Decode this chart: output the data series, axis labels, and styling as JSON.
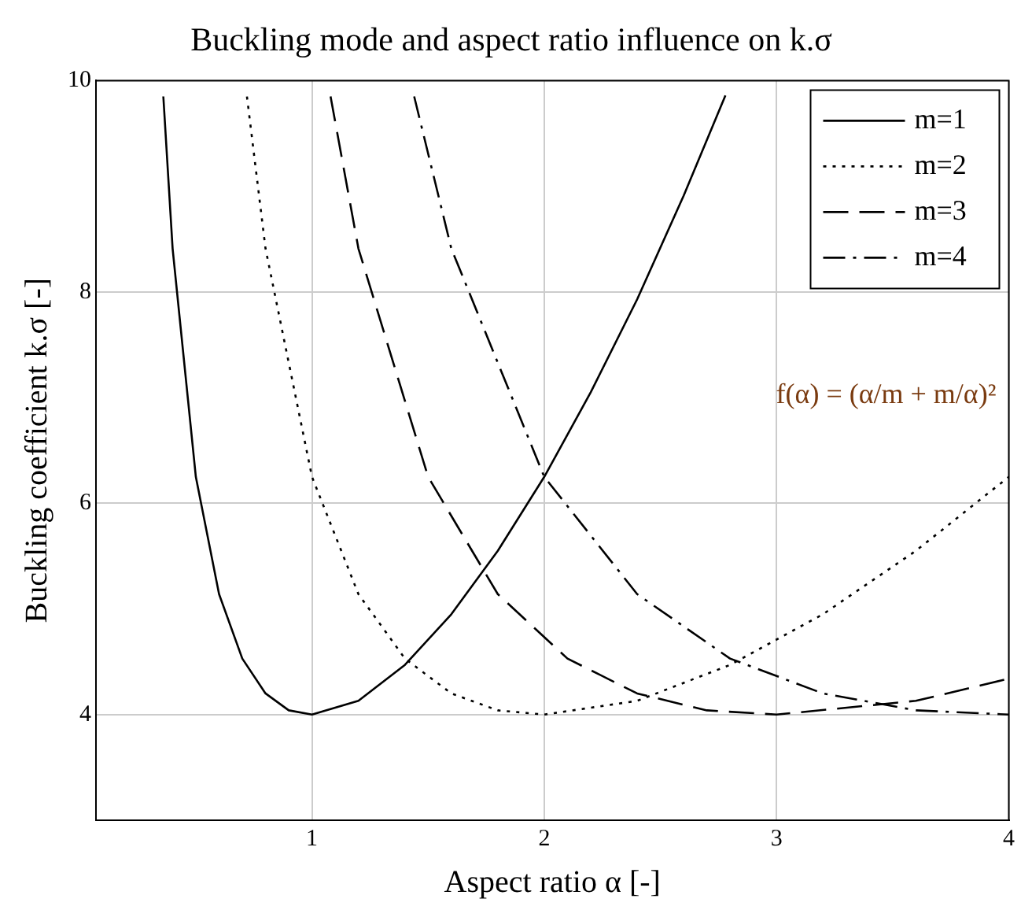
{
  "chart_data": {
    "type": "line",
    "title": "Buckling mode and aspect ratio influence on k.σ",
    "xlabel": "Aspect ratio α [-]",
    "ylabel": "Buckling coefficient k.σ [-]",
    "xlim": [
      0.07,
      4
    ],
    "xticks": [
      1,
      2,
      3,
      4
    ],
    "ylim": [
      3,
      10
    ],
    "yticks": [
      4,
      6,
      8,
      10
    ],
    "grid": true,
    "legend": "top right",
    "marker": "none",
    "series": [
      {
        "name": "m=1",
        "color": "#000000",
        "line_style": "solid",
        "x": [
          0.36,
          0.4,
          0.5,
          0.6,
          0.7,
          0.8,
          0.9,
          1,
          1.2,
          1.4,
          1.6,
          1.8,
          2,
          2.2,
          2.4,
          2.6,
          2.78
        ],
        "values": [
          9.85,
          8.41,
          6.25,
          5.14,
          4.53,
          4.2,
          4.04,
          4,
          4.13,
          4.47,
          4.95,
          5.55,
          6.25,
          7.05,
          7.93,
          8.91,
          9.86
        ]
      },
      {
        "name": "m=2",
        "color": "#000000",
        "line_style": "dotted",
        "x": [
          0.72,
          0.8,
          1,
          1.2,
          1.4,
          1.6,
          1.8,
          2,
          2.4,
          2.8,
          3.2,
          3.6,
          4
        ],
        "values": [
          9.85,
          8.41,
          6.25,
          5.14,
          4.53,
          4.2,
          4.04,
          4,
          4.13,
          4.47,
          4.95,
          5.55,
          6.25
        ]
      },
      {
        "name": "m=3",
        "color": "#000000",
        "line_style": "dashed",
        "x": [
          1.08,
          1.2,
          1.5,
          1.8,
          2.1,
          2.4,
          2.7,
          3,
          3.6,
          4
        ],
        "values": [
          9.85,
          8.41,
          6.25,
          5.14,
          4.53,
          4.2,
          4.04,
          4,
          4.13,
          4.34
        ]
      },
      {
        "name": "m=4",
        "color": "#000000",
        "line_style": "dashdot",
        "x": [
          1.44,
          1.6,
          2,
          2.4,
          2.8,
          3.2,
          3.6,
          4
        ],
        "values": [
          9.85,
          8.41,
          6.25,
          5.14,
          4.53,
          4.2,
          4.04,
          4
        ]
      }
    ],
    "annotations": [
      "f(α) = (α/m + m/α)²"
    ]
  }
}
